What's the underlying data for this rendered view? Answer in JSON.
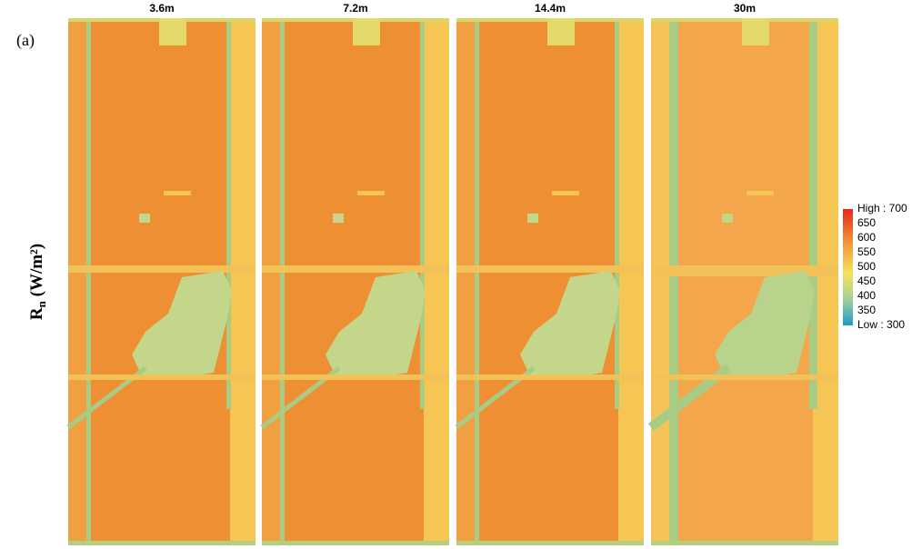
{
  "figure_label": "(a)",
  "ylabel": {
    "main": "R",
    "sub": "n",
    "unit": " (W/m²)"
  },
  "panels": [
    {
      "title": "3.6m"
    },
    {
      "title": "7.2m"
    },
    {
      "title": "14.4m"
    },
    {
      "title": "30m"
    }
  ],
  "legend": {
    "labels": [
      "High : 700",
      "650",
      "600",
      "550",
      "500",
      "450",
      "400",
      "350",
      "Low : 300"
    ]
  }
}
